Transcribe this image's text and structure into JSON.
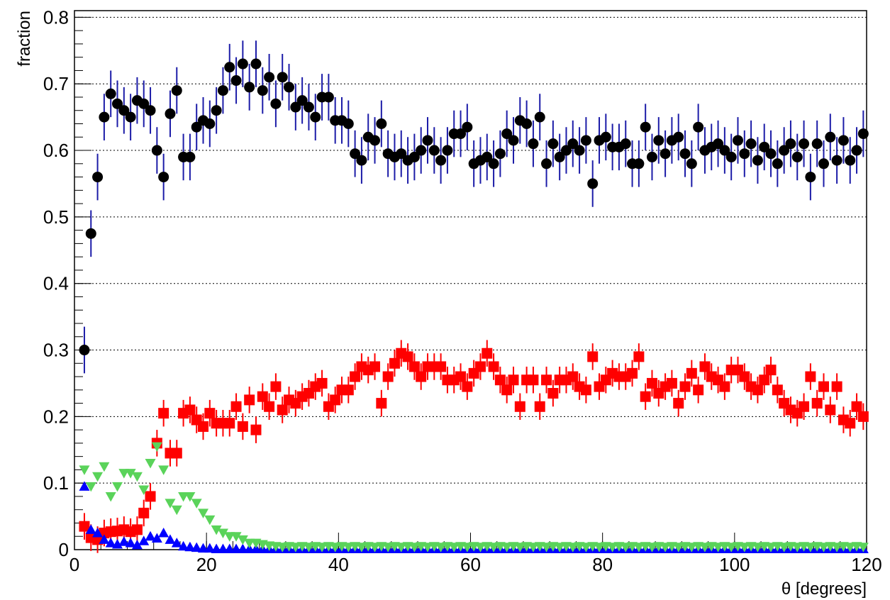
{
  "chart_data": {
    "type": "scatter",
    "xlabel": "θ [degrees]",
    "ylabel": "fraction",
    "xlim": [
      0,
      120
    ],
    "ylim": [
      0,
      0.81
    ],
    "xticks": [
      0,
      20,
      40,
      60,
      80,
      100,
      120
    ],
    "yticks": [
      0,
      0.1,
      0.2,
      0.3,
      0.4,
      0.5,
      0.6,
      0.7,
      0.8
    ],
    "grid": "y",
    "x": [
      1.5,
      2.5,
      3.5,
      4.5,
      5.5,
      6.5,
      7.5,
      8.5,
      9.5,
      10.5,
      11.5,
      12.5,
      13.5,
      14.5,
      15.5,
      16.5,
      17.5,
      18.5,
      19.5,
      20.5,
      21.5,
      22.5,
      23.5,
      24.5,
      25.5,
      26.5,
      27.5,
      28.5,
      29.5,
      30.5,
      31.5,
      32.5,
      33.5,
      34.5,
      35.5,
      36.5,
      37.5,
      38.5,
      39.5,
      40.5,
      41.5,
      42.5,
      43.5,
      44.5,
      45.5,
      46.5,
      47.5,
      48.5,
      49.5,
      50.5,
      51.5,
      52.5,
      53.5,
      54.5,
      55.5,
      56.5,
      57.5,
      58.5,
      59.5,
      60.5,
      61.5,
      62.5,
      63.5,
      64.5,
      65.5,
      66.5,
      67.5,
      68.5,
      69.5,
      70.5,
      71.5,
      72.5,
      73.5,
      74.5,
      75.5,
      76.5,
      77.5,
      78.5,
      79.5,
      80.5,
      81.5,
      82.5,
      83.5,
      84.5,
      85.5,
      86.5,
      87.5,
      88.5,
      89.5,
      90.5,
      91.5,
      92.5,
      93.5,
      94.5,
      95.5,
      96.5,
      97.5,
      98.5,
      99.5,
      100.5,
      101.5,
      102.5,
      103.5,
      104.5,
      105.5,
      106.5,
      107.5,
      108.5,
      109.5,
      110.5,
      111.5,
      112.5,
      113.5,
      114.5,
      115.5,
      116.5,
      117.5,
      118.5,
      119.5
    ],
    "series": [
      {
        "color": "#000000",
        "marker": "circle",
        "error_color": "#1c1ca8",
        "yerr": 0.035,
        "values": [
          0.3,
          0.475,
          0.56,
          0.65,
          0.685,
          0.67,
          0.66,
          0.65,
          0.675,
          0.67,
          0.66,
          0.6,
          0.56,
          0.655,
          0.69,
          0.59,
          0.59,
          0.635,
          0.645,
          0.64,
          0.66,
          0.69,
          0.725,
          0.705,
          0.73,
          0.695,
          0.73,
          0.69,
          0.71,
          0.67,
          0.71,
          0.695,
          0.665,
          0.675,
          0.665,
          0.65,
          0.68,
          0.68,
          0.645,
          0.645,
          0.64,
          0.595,
          0.585,
          0.62,
          0.615,
          0.64,
          0.595,
          0.59,
          0.595,
          0.585,
          0.59,
          0.6,
          0.615,
          0.6,
          0.585,
          0.6,
          0.625,
          0.625,
          0.635,
          0.58,
          0.585,
          0.59,
          0.58,
          0.595,
          0.625,
          0.615,
          0.645,
          0.64,
          0.61,
          0.65,
          0.58,
          0.61,
          0.59,
          0.6,
          0.61,
          0.6,
          0.615,
          0.55,
          0.615,
          0.62,
          0.605,
          0.605,
          0.61,
          0.58,
          0.58,
          0.635,
          0.59,
          0.615,
          0.595,
          0.615,
          0.62,
          0.595,
          0.58,
          0.635,
          0.6,
          0.605,
          0.61,
          0.6,
          0.59,
          0.615,
          0.595,
          0.61,
          0.585,
          0.605,
          0.595,
          0.58,
          0.6,
          0.61,
          0.59,
          0.61,
          0.56,
          0.61,
          0.58,
          0.62,
          0.585,
          0.615,
          0.585,
          0.6,
          0.625
        ]
      },
      {
        "color": "#ff0000",
        "marker": "square",
        "error_color": "#ff0000",
        "yerr": 0.02,
        "values": [
          0.035,
          0.018,
          0.015,
          0.025,
          0.027,
          0.028,
          0.03,
          0.027,
          0.03,
          0.055,
          0.08,
          0.16,
          0.205,
          0.145,
          0.145,
          0.205,
          0.21,
          0.195,
          0.185,
          0.205,
          0.19,
          0.19,
          0.19,
          0.215,
          0.185,
          0.225,
          0.18,
          0.23,
          0.215,
          0.245,
          0.21,
          0.225,
          0.22,
          0.23,
          0.235,
          0.245,
          0.25,
          0.215,
          0.225,
          0.24,
          0.24,
          0.26,
          0.275,
          0.27,
          0.275,
          0.22,
          0.26,
          0.28,
          0.295,
          0.29,
          0.275,
          0.26,
          0.275,
          0.275,
          0.275,
          0.255,
          0.255,
          0.26,
          0.245,
          0.265,
          0.275,
          0.295,
          0.275,
          0.255,
          0.24,
          0.255,
          0.215,
          0.255,
          0.255,
          0.215,
          0.255,
          0.235,
          0.255,
          0.255,
          0.26,
          0.245,
          0.24,
          0.29,
          0.245,
          0.255,
          0.265,
          0.26,
          0.26,
          0.265,
          0.29,
          0.23,
          0.25,
          0.235,
          0.245,
          0.25,
          0.22,
          0.245,
          0.265,
          0.24,
          0.275,
          0.26,
          0.255,
          0.245,
          0.27,
          0.27,
          0.26,
          0.245,
          0.24,
          0.255,
          0.27,
          0.24,
          0.22,
          0.21,
          0.205,
          0.215,
          0.26,
          0.22,
          0.245,
          0.21,
          0.245,
          0.195,
          0.19,
          0.215,
          0.2
        ]
      },
      {
        "color": "#0000ff",
        "marker": "triangle-up",
        "values": [
          0.095,
          0.03,
          0.025,
          0.015,
          0.01,
          0.008,
          0.012,
          0.01,
          0.007,
          0.013,
          0.02,
          0.017,
          0.025,
          0.015,
          0.01,
          0.005,
          0.004,
          0.003,
          0.002,
          0.002,
          0.001,
          0.001,
          0.001,
          0.001,
          0.001,
          0.001,
          0.001,
          0.001,
          0.001,
          0.001,
          0.001,
          0.001,
          0.001,
          0.001,
          0.001,
          0.001,
          0.001,
          0.001,
          0.001,
          0.001,
          0.001,
          0.001,
          0.001,
          0.001,
          0.001,
          0.001,
          0.001,
          0.001,
          0.001,
          0.001,
          0.001,
          0.001,
          0.001,
          0.001,
          0.001,
          0.001,
          0.001,
          0.001,
          0.001,
          0.001,
          0.001,
          0.001,
          0.001,
          0.001,
          0.001,
          0.001,
          0.001,
          0.001,
          0.001,
          0.001,
          0.001,
          0.001,
          0.001,
          0.001,
          0.001,
          0.001,
          0.001,
          0.001,
          0.001,
          0.001,
          0.001,
          0.001,
          0.001,
          0.001,
          0.001,
          0.001,
          0.001,
          0.001,
          0.001,
          0.001,
          0.001,
          0.001,
          0.001,
          0.001,
          0.001,
          0.001,
          0.001,
          0.001,
          0.001,
          0.001,
          0.001,
          0.001,
          0.001,
          0.001,
          0.001,
          0.001,
          0.001,
          0.001,
          0.001,
          0.001,
          0.001,
          0.001,
          0.001,
          0.001,
          0.001,
          0.001,
          0.001,
          0.001,
          0.001
        ]
      },
      {
        "color": "#5ad35a",
        "marker": "triangle-down",
        "values": [
          0.12,
          0.095,
          0.11,
          0.125,
          0.08,
          0.095,
          0.115,
          0.115,
          0.11,
          0.09,
          0.13,
          0.155,
          0.12,
          0.07,
          0.06,
          0.08,
          0.08,
          0.07,
          0.055,
          0.045,
          0.03,
          0.025,
          0.02,
          0.02,
          0.015,
          0.01,
          0.01,
          0.008,
          0.006,
          0.005,
          0.004,
          0.005,
          0.004,
          0.005,
          0.004,
          0.005,
          0.004,
          0.005,
          0.004,
          0.005,
          0.004,
          0.005,
          0.004,
          0.005,
          0.004,
          0.005,
          0.004,
          0.005,
          0.004,
          0.005,
          0.004,
          0.005,
          0.004,
          0.005,
          0.004,
          0.005,
          0.004,
          0.005,
          0.004,
          0.005,
          0.004,
          0.005,
          0.004,
          0.005,
          0.004,
          0.005,
          0.004,
          0.005,
          0.004,
          0.005,
          0.004,
          0.005,
          0.004,
          0.005,
          0.004,
          0.005,
          0.004,
          0.005,
          0.004,
          0.005,
          0.004,
          0.005,
          0.004,
          0.005,
          0.004,
          0.005,
          0.004,
          0.005,
          0.004,
          0.005,
          0.004,
          0.005,
          0.004,
          0.005,
          0.004,
          0.005,
          0.004,
          0.005,
          0.004,
          0.005,
          0.004,
          0.005,
          0.004,
          0.005,
          0.004,
          0.005,
          0.004,
          0.005,
          0.004,
          0.005,
          0.004,
          0.005,
          0.004,
          0.005,
          0.004,
          0.005,
          0.004,
          0.005,
          0.004
        ]
      }
    ]
  }
}
